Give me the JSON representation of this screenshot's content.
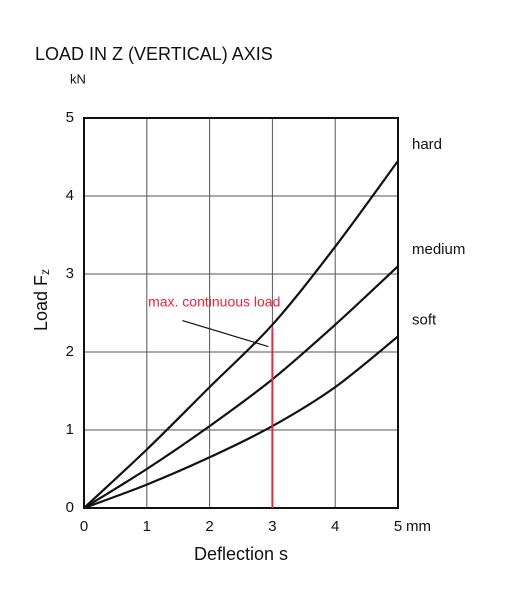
{
  "chart_data": {
    "type": "line",
    "title": "LOAD IN Z (VERTICAL) AXIS",
    "y_unit": "kN",
    "y_label": "Load F",
    "y_label_sub": "z",
    "x_label": "Deflection s",
    "x_unit": "mm",
    "x": [
      0,
      1,
      2,
      3,
      4,
      5
    ],
    "series": [
      {
        "name": "hard",
        "color": "#111111",
        "values": [
          0,
          0.75,
          1.55,
          2.35,
          3.35,
          4.45
        ]
      },
      {
        "name": "medium",
        "color": "#111111",
        "values": [
          0,
          0.5,
          1.05,
          1.65,
          2.35,
          3.1
        ]
      },
      {
        "name": "soft",
        "color": "#111111",
        "values": [
          0,
          0.3,
          0.65,
          1.05,
          1.55,
          2.2
        ]
      }
    ],
    "xlim": [
      0,
      5
    ],
    "xticks": [
      0,
      1,
      2,
      3,
      4,
      5
    ],
    "ylim": [
      0,
      5
    ],
    "yticks": [
      0,
      1,
      2,
      3,
      4,
      5
    ],
    "grid": true,
    "annotations": [
      {
        "text": "max. continuous load",
        "x": 3,
        "y": 2.3,
        "color": "#e8253a"
      }
    ]
  }
}
